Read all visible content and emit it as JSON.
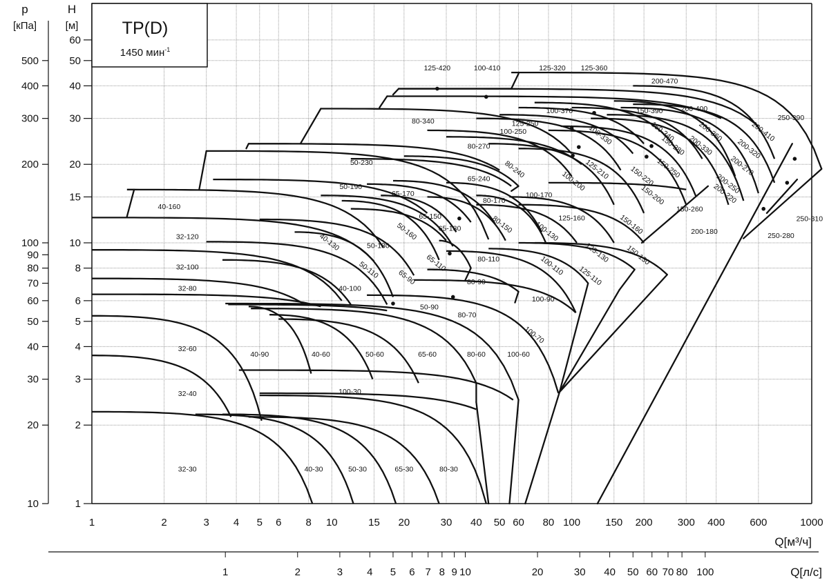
{
  "chart_data": {
    "type": "line",
    "title": "TP(D)",
    "subtitle": "1450 мин",
    "subtitle_sup": "-1",
    "xlabel": "Q[м³/ч]",
    "xlabel2": "Q[л/с]",
    "ylabel": "H",
    "ylabel_unit": "[м]",
    "ylabel2": "p",
    "ylabel2_unit": "[кПа]",
    "x_scale": "log",
    "y_scale": "log",
    "xlim": [
      1,
      1000
    ],
    "ylim": [
      1,
      83
    ],
    "grid": true,
    "x_ticks": [
      1,
      2,
      3,
      4,
      5,
      6,
      8,
      10,
      15,
      20,
      30,
      40,
      50,
      60,
      80,
      100,
      150,
      200,
      300,
      400,
      600,
      1000
    ],
    "x2_ticks_ls": [
      1,
      2,
      3,
      4,
      5,
      6,
      7,
      8,
      9,
      10,
      20,
      30,
      40,
      50,
      60,
      70,
      80,
      100
    ],
    "y_ticks": [
      1,
      2,
      3,
      4,
      5,
      6,
      8,
      10,
      15,
      20,
      30,
      40,
      50,
      60
    ],
    "y2_ticks_kpa": [
      10,
      20,
      30,
      40,
      50,
      60,
      70,
      80,
      90,
      100,
      200,
      300,
      400,
      500
    ],
    "curve_model": "H(Q) = Hs - (Hs - He) * ((Q - Qs)/(Qe - Qs))^2, each as [Qs, Hs, Qe, He]",
    "curves": [
      [
        1,
        2.25,
        8.3,
        1
      ],
      [
        2.7,
        2.2,
        12.3,
        1
      ],
      [
        3.5,
        2.2,
        18.5,
        1
      ],
      [
        4.5,
        2.15,
        28,
        1
      ],
      [
        5,
        2.6,
        44,
        1
      ],
      [
        4.1,
        3.25,
        57,
        2.5
      ],
      [
        5,
        2.65,
        40,
        2.3
      ],
      [
        1,
        3.7,
        3.8,
        2.15
      ],
      [
        1,
        5.25,
        5.1,
        2.08
      ],
      [
        4.5,
        5.7,
        8.2,
        3.15
      ],
      [
        5.5,
        5.3,
        14.8,
        3.0
      ],
      [
        6,
        5.1,
        23,
        2.9
      ],
      [
        4.6,
        5.6,
        40,
        2.9
      ],
      [
        3.6,
        5.85,
        60,
        2.5
      ],
      [
        1,
        7.3,
        7.7,
        5.8
      ],
      [
        1,
        6.35,
        9,
        5.7
      ],
      [
        3.7,
        5.8,
        17,
        5.5
      ],
      [
        14,
        6.3,
        88,
        2.65
      ],
      [
        22,
        7.2,
        104,
        5.4
      ],
      [
        25,
        7.9,
        60,
        6.5
      ],
      [
        30,
        9.3,
        104,
        5.4
      ],
      [
        45,
        9.5,
        117,
        7
      ],
      [
        60,
        10,
        183,
        7.9
      ],
      [
        70,
        10,
        250,
        7.55
      ],
      [
        1.4,
        16,
        16.4,
        9.6
      ],
      [
        1,
        12.5,
        15,
        8.5
      ],
      [
        1,
        9.4,
        11,
        6
      ],
      [
        3,
        10.1,
        17,
        5.8
      ],
      [
        3.5,
        8.6,
        12,
        5.8
      ],
      [
        5,
        12.3,
        22,
        7.5
      ],
      [
        7,
        11,
        18,
        6.2
      ],
      [
        9,
        15.2,
        32,
        9.7
      ],
      [
        11,
        14.5,
        28,
        8.6
      ],
      [
        14,
        16.8,
        38,
        12
      ],
      [
        16,
        15.2,
        33,
        11
      ],
      [
        12,
        13.5,
        30,
        10.2
      ],
      [
        28,
        10.2,
        38,
        8
      ],
      [
        18,
        17.3,
        48,
        11.8
      ],
      [
        25,
        15,
        53,
        10.2
      ],
      [
        30,
        17,
        75,
        11
      ],
      [
        40,
        15.2,
        78,
        10
      ],
      [
        40,
        14,
        105,
        10
      ],
      [
        55,
        15,
        150,
        10
      ],
      [
        60,
        14,
        200,
        10
      ],
      [
        80,
        17,
        300,
        16
      ],
      [
        3.2,
        17.5,
        25,
        13
      ],
      [
        3,
        22.5,
        45,
        10.3
      ],
      [
        12,
        21,
        56,
        16.5
      ],
      [
        20,
        21.5,
        60,
        16.5
      ],
      [
        4.5,
        24,
        50,
        19
      ],
      [
        9,
        32.7,
        100,
        22
      ],
      [
        25,
        27,
        100,
        18
      ],
      [
        30,
        25.5,
        110,
        20
      ],
      [
        40,
        30,
        160,
        19
      ],
      [
        50,
        31,
        180,
        22
      ],
      [
        60,
        33,
        200,
        24
      ],
      [
        70,
        34.5,
        280,
        22
      ],
      [
        100,
        33,
        350,
        21
      ],
      [
        150,
        35,
        480,
        18
      ],
      [
        180,
        40,
        700,
        21
      ],
      [
        19,
        39,
        600,
        28
      ],
      [
        17,
        36.5,
        420,
        30
      ],
      [
        56,
        45,
        1100,
        19.2
      ],
      [
        120,
        30,
        450,
        14
      ],
      [
        140,
        31,
        520,
        14.5
      ],
      [
        160,
        33,
        600,
        15.5
      ],
      [
        180,
        34,
        700,
        17
      ],
      [
        80,
        27,
        300,
        14
      ],
      [
        90,
        28,
        330,
        15
      ],
      [
        45,
        24,
        150,
        14
      ],
      [
        60,
        23,
        200,
        13
      ]
    ],
    "segments": [
      [
        [
          40,
          2.9
        ],
        [
          40,
          2.45
        ]
      ],
      [
        [
          40,
          2.45
        ],
        [
          45,
          1
        ]
      ],
      [
        [
          60,
          2.5
        ],
        [
          55,
          1
        ]
      ],
      [
        [
          64,
          1
        ],
        [
          89,
          2.68
        ]
      ],
      [
        [
          89,
          2.68
        ],
        [
          117,
          7
        ]
      ],
      [
        [
          89,
          2.68
        ],
        [
          158,
          6.6
        ]
      ],
      [
        [
          158,
          6.6
        ],
        [
          183,
          7.9
        ]
      ],
      [
        [
          89,
          2.68
        ],
        [
          250,
          7.55
        ]
      ],
      [
        [
          60,
          6.5
        ],
        [
          58,
          5.9
        ]
      ],
      [
        [
          38,
          8
        ],
        [
          36,
          7.2
        ]
      ],
      [
        [
          60,
          16.5
        ],
        [
          56,
          15.8
        ]
      ],
      [
        [
          196,
          10
        ],
        [
          370,
          16.5
        ]
      ],
      [
        [
          128,
          1
        ],
        [
          830,
          24
        ]
      ],
      [
        [
          1100,
          19.2
        ],
        [
          520,
          10.4
        ]
      ],
      [
        [
          650,
          13
        ],
        [
          870,
          17.5
        ]
      ],
      [
        [
          19,
          39
        ],
        [
          56,
          39
        ]
      ],
      [
        [
          56,
          39
        ],
        [
          60,
          44.5
        ]
      ],
      [
        [
          15.8,
          33
        ],
        [
          17,
          36.5
        ]
      ],
      [
        [
          18,
          37
        ],
        [
          19,
          39
        ]
      ],
      [
        [
          7.4,
          24
        ],
        [
          9,
          32.7
        ]
      ],
      [
        [
          4.4,
          23
        ],
        [
          4.5,
          24
        ]
      ],
      [
        [
          2.8,
          16
        ],
        [
          3,
          22.5
        ]
      ],
      [
        [
          1.4,
          12.6
        ],
        [
          1.5,
          16
        ]
      ]
    ],
    "labels": [
      {
        "text": "125-420",
        "q": 27.5,
        "h": 47
      },
      {
        "text": "100-410",
        "q": 44.4,
        "h": 47
      },
      {
        "text": "125-320",
        "q": 83,
        "h": 47
      },
      {
        "text": "125-360",
        "q": 124,
        "h": 47
      },
      {
        "text": "200-470",
        "q": 244,
        "h": 41.9
      },
      {
        "text": "100-370",
        "q": 89,
        "h": 32.2
      },
      {
        "text": "80-340",
        "q": 24,
        "h": 29.4
      },
      {
        "text": "150-390",
        "q": 211,
        "h": 32.2
      },
      {
        "text": "200-400",
        "q": 324,
        "h": 32.8
      },
      {
        "text": "125-250",
        "q": 63.9,
        "h": 28.8
      },
      {
        "text": "100-250",
        "q": 57,
        "h": 26.8
      },
      {
        "text": "100-330",
        "q": 132,
        "h": 26
      },
      {
        "text": "150-340",
        "q": 240,
        "h": 26.8
      },
      {
        "text": "200-360",
        "q": 380,
        "h": 26.8
      },
      {
        "text": "200-410",
        "q": 630,
        "h": 26.8
      },
      {
        "text": "250-390",
        "q": 820,
        "h": 30.3
      },
      {
        "text": "80-270",
        "q": 41,
        "h": 23.5
      },
      {
        "text": "150-280",
        "q": 265,
        "h": 23.7
      },
      {
        "text": "200-330",
        "q": 346,
        "h": 23.7
      },
      {
        "text": "200-320",
        "q": 550,
        "h": 23
      },
      {
        "text": "50-230",
        "q": 13.3,
        "h": 20.4
      },
      {
        "text": "80-240",
        "q": 58,
        "h": 19.2
      },
      {
        "text": "200-270",
        "q": 515,
        "h": 19.8
      },
      {
        "text": "150-250",
        "q": 254,
        "h": 19.4
      },
      {
        "text": "125-210",
        "q": 128,
        "h": 19.2
      },
      {
        "text": "150-220",
        "q": 197,
        "h": 18.1
      },
      {
        "text": "65-240",
        "q": 41,
        "h": 17.7
      },
      {
        "text": "200-250",
        "q": 450,
        "h": 16.9
      },
      {
        "text": "50-190",
        "q": 12,
        "h": 16.5
      },
      {
        "text": "100-200",
        "q": 102,
        "h": 17.3
      },
      {
        "text": "150-260",
        "q": 310,
        "h": 13.5
      },
      {
        "text": "40-160",
        "q": 2.1,
        "h": 13.8
      },
      {
        "text": "80-170",
        "q": 47.5,
        "h": 14.6
      },
      {
        "text": "100-170",
        "q": 73,
        "h": 15.3
      },
      {
        "text": "150-200",
        "q": 218,
        "h": 15.3
      },
      {
        "text": "65-170",
        "q": 19.8,
        "h": 15.5
      },
      {
        "text": "200-220",
        "q": 437,
        "h": 15.5
      },
      {
        "text": "65-150",
        "q": 25.7,
        "h": 12.7
      },
      {
        "text": "125-160",
        "q": 100,
        "h": 12.5
      },
      {
        "text": "250-310",
        "q": 980,
        "h": 12.4
      },
      {
        "text": "150-160",
        "q": 178,
        "h": 11.8
      },
      {
        "text": "50-160",
        "q": 20.6,
        "h": 11.1
      },
      {
        "text": "65-130",
        "q": 31,
        "h": 11.4
      },
      {
        "text": "80-150",
        "q": 51.5,
        "h": 11.8
      },
      {
        "text": "100-130",
        "q": 79,
        "h": 11.1
      },
      {
        "text": "200-180",
        "q": 357,
        "h": 11.1
      },
      {
        "text": "250-280",
        "q": 745,
        "h": 10.7
      },
      {
        "text": "32-120",
        "q": 2.5,
        "h": 10.6
      },
      {
        "text": "40-130",
        "q": 9.8,
        "h": 10.1
      },
      {
        "text": "50-130",
        "q": 15.6,
        "h": 9.8
      },
      {
        "text": "125-130",
        "q": 128,
        "h": 9.2
      },
      {
        "text": "80-110",
        "q": 45,
        "h": 8.7
      },
      {
        "text": "65-110",
        "q": 27.3,
        "h": 8.4
      },
      {
        "text": "150-130",
        "q": 190,
        "h": 9
      },
      {
        "text": "100-110",
        "q": 83,
        "h": 8.2
      },
      {
        "text": "32-100",
        "q": 2.5,
        "h": 8.1
      },
      {
        "text": "50-110",
        "q": 14.3,
        "h": 7.9
      },
      {
        "text": "125-110",
        "q": 120,
        "h": 7.5
      },
      {
        "text": "65-90",
        "q": 20.6,
        "h": 7.4
      },
      {
        "text": "80-90",
        "q": 40,
        "h": 7.1
      },
      {
        "text": "32-80",
        "q": 2.5,
        "h": 6.7
      },
      {
        "text": "40-100",
        "q": 11.9,
        "h": 6.7
      },
      {
        "text": "100-90",
        "q": 76,
        "h": 6.1
      },
      {
        "text": "50-90",
        "q": 25.5,
        "h": 5.7
      },
      {
        "text": "80-70",
        "q": 36.6,
        "h": 5.3
      },
      {
        "text": "100-70",
        "q": 70,
        "h": 4.45
      },
      {
        "text": "32-60",
        "q": 2.5,
        "h": 3.94
      },
      {
        "text": "40-90",
        "q": 5.0,
        "h": 3.75
      },
      {
        "text": "40-60",
        "q": 9,
        "h": 3.75
      },
      {
        "text": "50-60",
        "q": 15.1,
        "h": 3.75
      },
      {
        "text": "65-60",
        "q": 25,
        "h": 3.75
      },
      {
        "text": "80-60",
        "q": 40,
        "h": 3.75
      },
      {
        "text": "100-60",
        "q": 60,
        "h": 3.75
      },
      {
        "text": "100-30",
        "q": 11.9,
        "h": 2.7
      },
      {
        "text": "32-40",
        "q": 2.5,
        "h": 2.65
      },
      {
        "text": "32-30",
        "q": 2.5,
        "h": 1.36
      },
      {
        "text": "40-30",
        "q": 8.4,
        "h": 1.36
      },
      {
        "text": "50-30",
        "q": 12.8,
        "h": 1.36
      },
      {
        "text": "65-30",
        "q": 20,
        "h": 1.36
      },
      {
        "text": "80-30",
        "q": 30.7,
        "h": 1.36
      }
    ],
    "marker_points": [
      [
        27.5,
        39
      ],
      [
        44,
        36.3
      ],
      [
        100,
        27.5
      ],
      [
        107,
        23.3
      ],
      [
        101,
        21.6
      ],
      [
        124,
        31.5
      ],
      [
        215,
        23.5
      ],
      [
        205,
        21.4
      ],
      [
        34,
        12.4
      ],
      [
        31,
        9.1
      ],
      [
        18,
        5.85
      ],
      [
        32,
        6.2
      ],
      [
        850,
        21
      ],
      [
        790,
        17
      ],
      [
        630,
        13.5
      ]
    ]
  }
}
